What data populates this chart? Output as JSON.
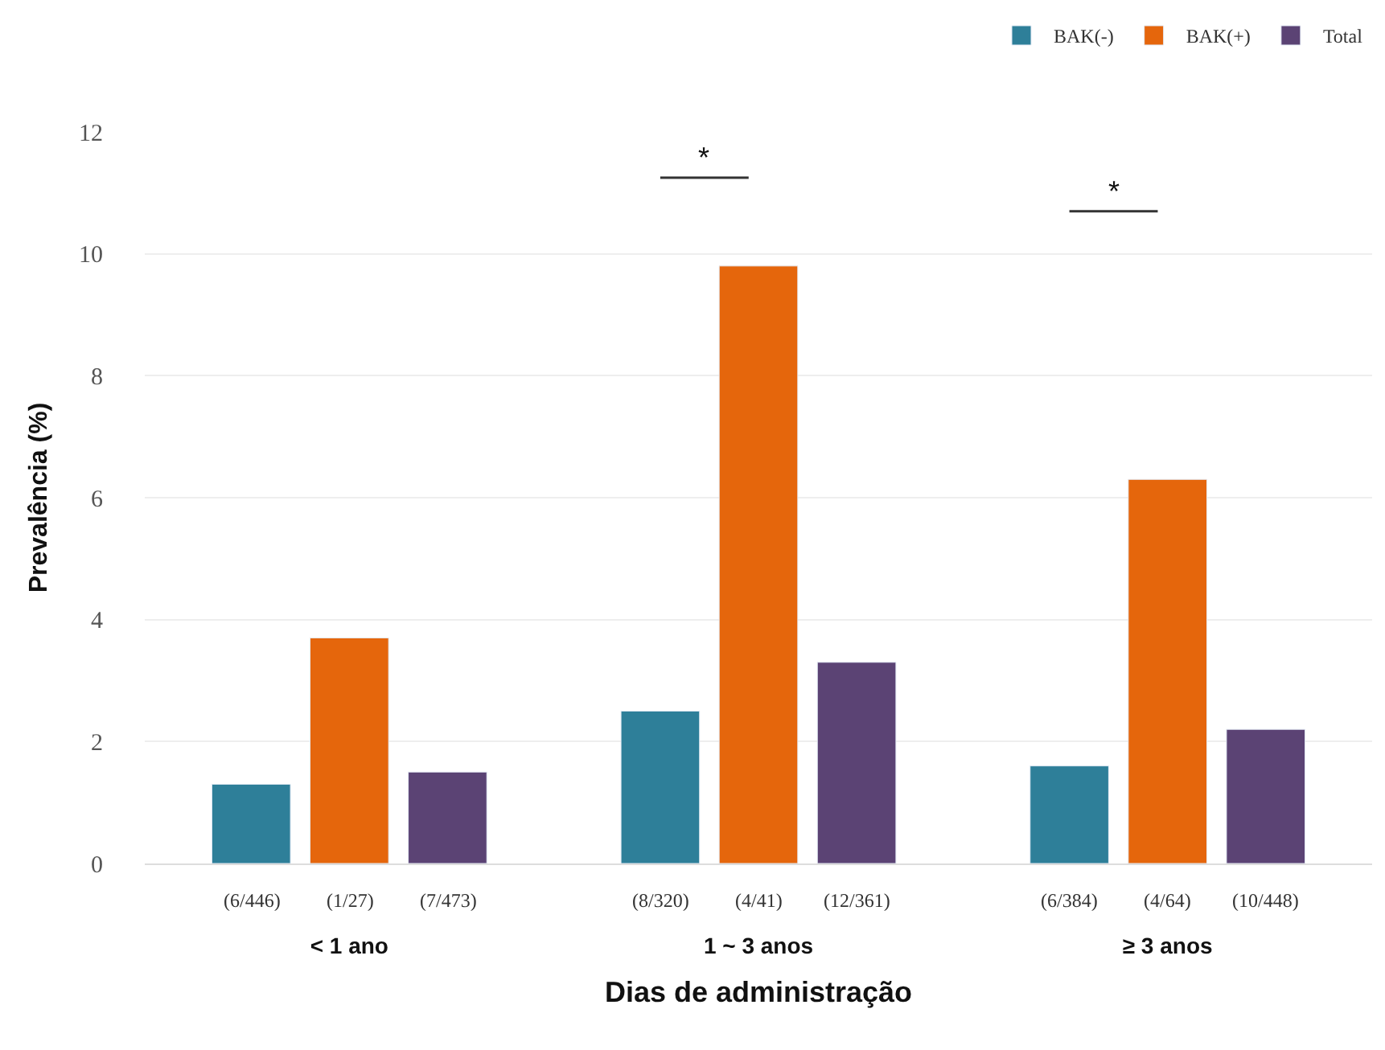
{
  "chart_data": {
    "type": "bar",
    "xlabel": "Dias de administração",
    "ylabel": "Prevalência (%)",
    "categories": [
      "< 1 ano",
      "1 ~ 3 anos",
      "≥ 3 anos"
    ],
    "series": [
      {
        "name": "BAK(-)",
        "color": "#2e7f99",
        "values": [
          1.3,
          2.5,
          1.6
        ],
        "value_labels": [
          "(6/446)",
          "(8/320)",
          "(6/384)"
        ]
      },
      {
        "name": "BAK(+)",
        "color": "#e5660c",
        "values": [
          3.7,
          9.8,
          6.3
        ],
        "value_labels": [
          "(1/27)",
          "(4/41)",
          "(4/64)"
        ]
      },
      {
        "name": "Total",
        "color": "#5b4374",
        "values": [
          1.5,
          3.3,
          2.2
        ],
        "value_labels": [
          "(7/473)",
          "(12/361)",
          "(10/448)"
        ]
      }
    ],
    "ylim": [
      0,
      12
    ],
    "yticks": [
      0,
      2,
      4,
      6,
      8,
      10,
      12
    ],
    "grid": "y",
    "legend": "top right",
    "annotations": [
      "*",
      "*"
    ]
  }
}
